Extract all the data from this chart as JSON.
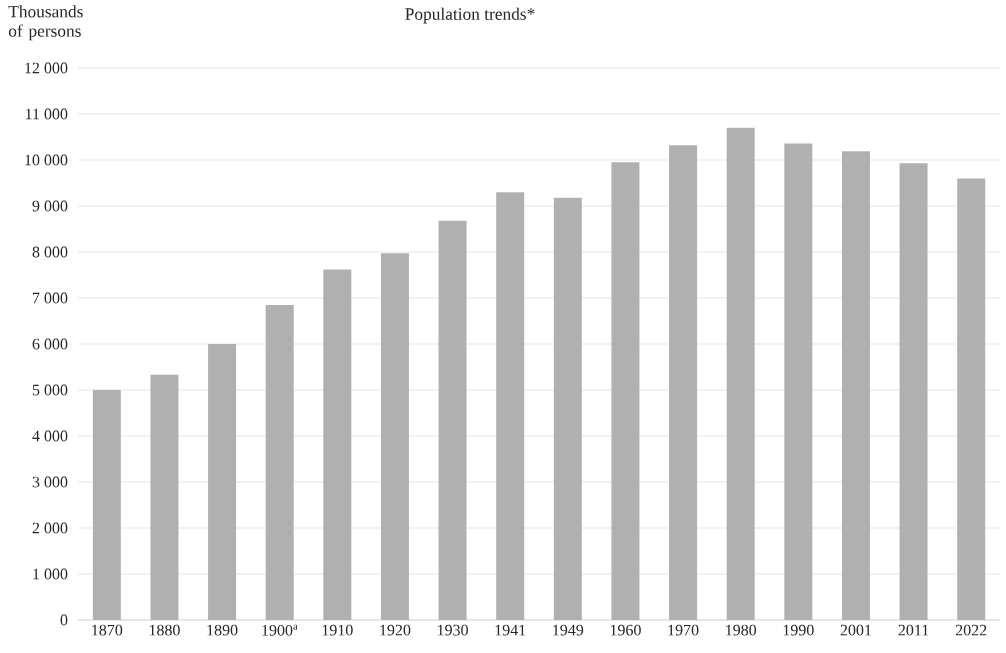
{
  "chart_data": {
    "type": "bar",
    "title": "Population trends*",
    "ylabel": "Thousands of persons",
    "categories": [
      "1870",
      "1880",
      "1890",
      "1900$^{a}$",
      "1910",
      "1920",
      "1930",
      "1941",
      "1949",
      "1960",
      "1970",
      "1980",
      "1990",
      "2001",
      "2011",
      "2022"
    ],
    "values": [
      5000,
      5330,
      6000,
      6850,
      7620,
      7970,
      8680,
      9300,
      9180,
      9950,
      10320,
      10700,
      10360,
      10190,
      9930,
      9600
    ],
    "color": "#b0b0b0",
    "ylim": [
      0,
      12000
    ],
    "yticks": [
      {
        "value": 0,
        "label": "0"
      },
      {
        "value": 1000,
        "label": "1 000"
      },
      {
        "value": 2000,
        "label": "2 000"
      },
      {
        "value": 3000,
        "label": "3 000"
      },
      {
        "value": 4000,
        "label": "4 000"
      },
      {
        "value": 5000,
        "label": "5 000"
      },
      {
        "value": 6000,
        "label": "6 000"
      },
      {
        "value": 7000,
        "label": "7 000"
      },
      {
        "value": 8000,
        "label": "8 000"
      },
      {
        "value": 9000,
        "label": "9 000"
      },
      {
        "value": 10000,
        "label": "10 000"
      },
      {
        "value": 11000,
        "label": "11 000"
      },
      {
        "value": 12000,
        "label": "12 000"
      }
    ],
    "grid": "y"
  }
}
